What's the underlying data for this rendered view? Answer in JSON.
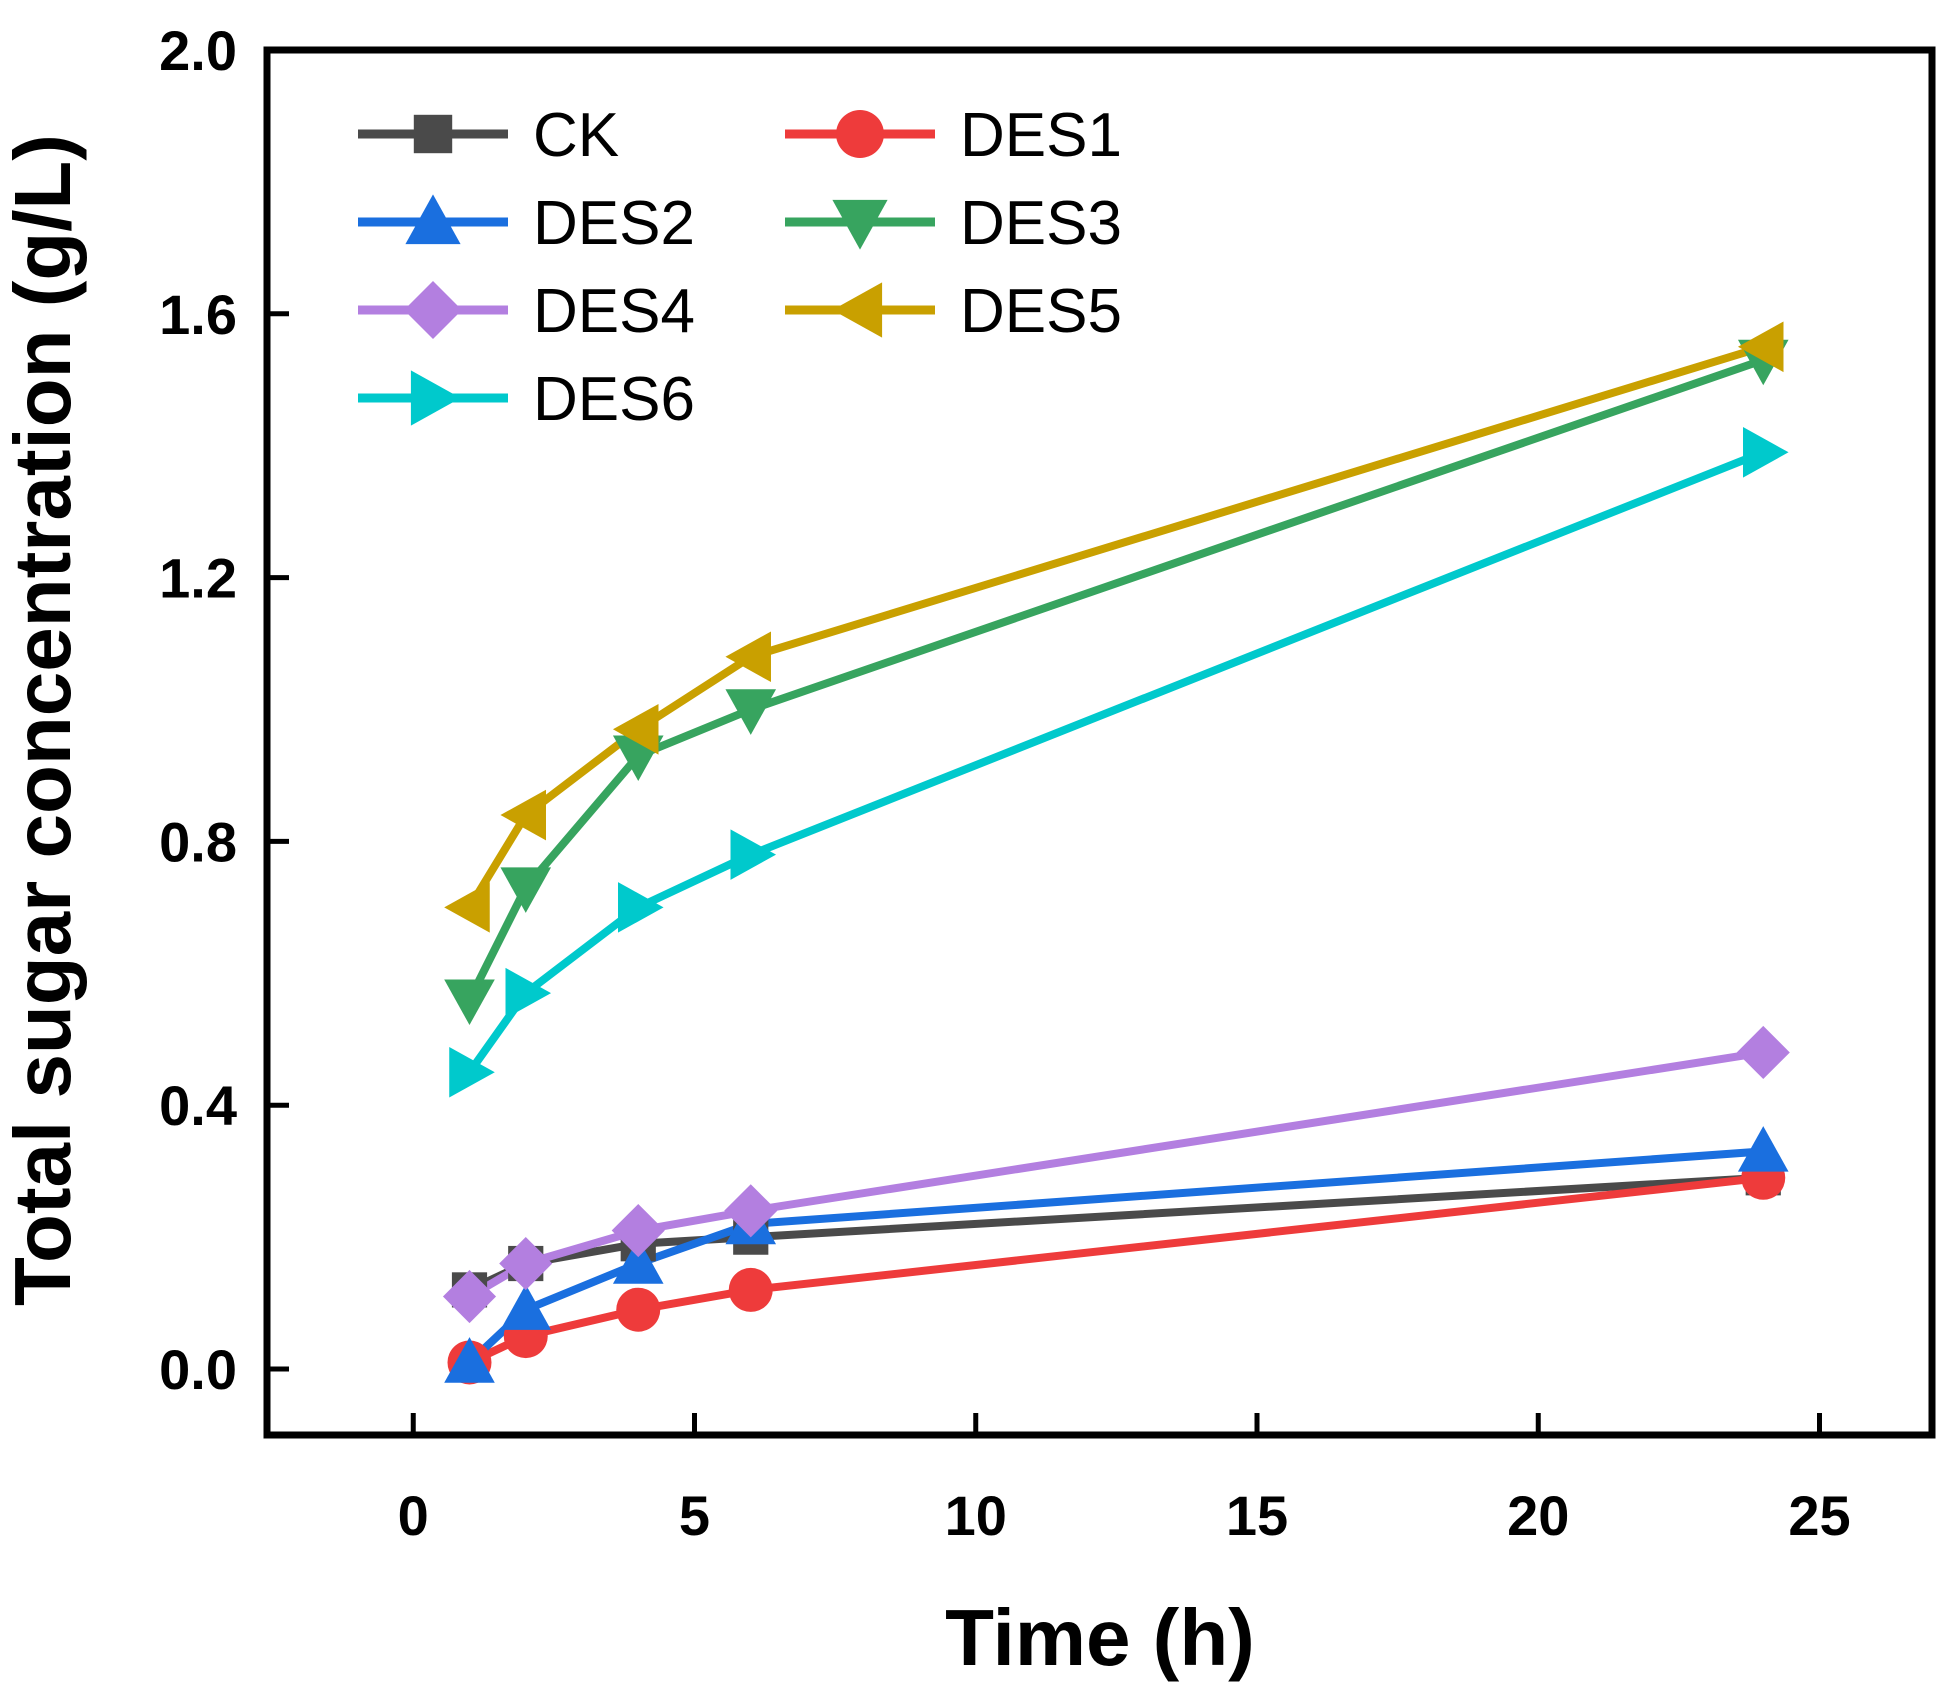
{
  "chart_data": {
    "type": "line",
    "title": "",
    "xlabel": "Time (h)",
    "ylabel": "Total sugar concentration (g/L)",
    "xlim": [
      -2.6,
      27
    ],
    "ylim": [
      -0.1,
      2.0
    ],
    "xticks": [
      0,
      5,
      10,
      15,
      20,
      25
    ],
    "yticks": [
      0.0,
      0.4,
      0.8,
      1.2,
      1.6,
      2.0
    ],
    "xtick_labels": [
      "0",
      "5",
      "10",
      "15",
      "20",
      "25"
    ],
    "ytick_labels": [
      "0.0",
      "0.4",
      "0.8",
      "1.2",
      "1.6",
      "2.0"
    ],
    "grid": false,
    "legend_position": "top-left",
    "x": [
      1,
      2,
      4,
      6,
      24
    ],
    "series": [
      {
        "name": "CK",
        "marker": "square",
        "color": "#4a4a4a",
        "values": [
          0.12,
          0.16,
          0.19,
          0.2,
          0.29
        ]
      },
      {
        "name": "DES1",
        "marker": "circle",
        "color": "#ee3b3b",
        "values": [
          0.01,
          0.05,
          0.09,
          0.12,
          0.29
        ]
      },
      {
        "name": "DES2",
        "marker": "triangle-up",
        "color": "#1a6fdf",
        "values": [
          0.01,
          0.09,
          0.16,
          0.22,
          0.33
        ]
      },
      {
        "name": "DES3",
        "marker": "triangle-down",
        "color": "#37a45f",
        "values": [
          0.56,
          0.73,
          0.93,
          1.0,
          1.53
        ]
      },
      {
        "name": "DES4",
        "marker": "diamond",
        "color": "#b37fe0",
        "values": [
          0.11,
          0.16,
          0.21,
          0.24,
          0.48
        ]
      },
      {
        "name": "DES5",
        "marker": "triangle-left",
        "color": "#c9a000",
        "values": [
          0.7,
          0.84,
          0.97,
          1.08,
          1.55
        ]
      },
      {
        "name": "DES6",
        "marker": "triangle-right",
        "color": "#00c9cc",
        "values": [
          0.45,
          0.57,
          0.7,
          0.78,
          1.39
        ]
      }
    ]
  }
}
